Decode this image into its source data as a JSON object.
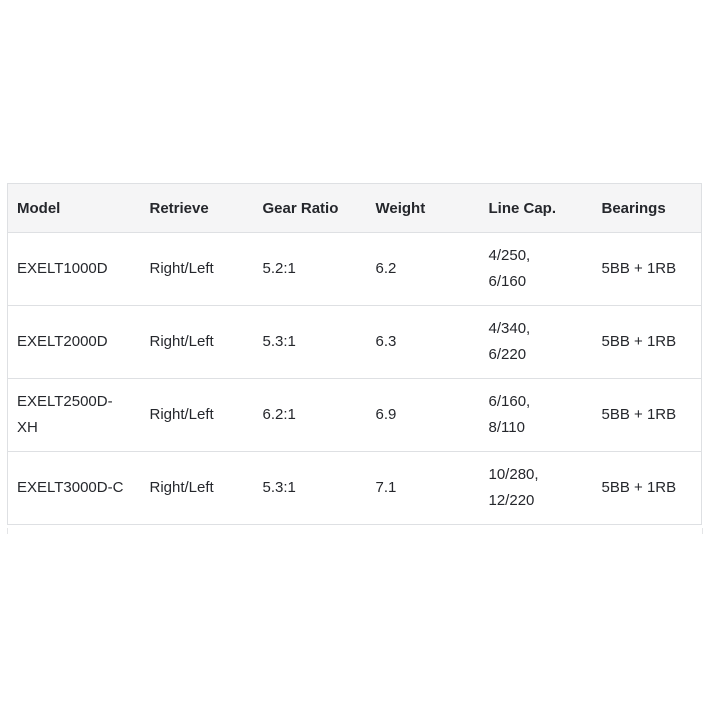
{
  "table": {
    "columns": [
      "Model",
      "Retrieve",
      "Gear Ratio",
      "Weight",
      "Line Cap.",
      "Bearings"
    ],
    "rows": [
      {
        "model": "EXELT1000D",
        "retrieve": "Right/Left",
        "gear_ratio": "5.2:1",
        "weight": "6.2",
        "line_cap": "4/250, 6/160",
        "bearings": "5BB + 1RB"
      },
      {
        "model": "EXELT2000D",
        "retrieve": "Right/Left",
        "gear_ratio": "5.3:1",
        "weight": "6.3",
        "line_cap": "4/340, 6/220",
        "bearings": "5BB + 1RB"
      },
      {
        "model": "EXELT2500D-XH",
        "retrieve": "Right/Left",
        "gear_ratio": "6.2:1",
        "weight": "6.9",
        "line_cap": "6/160, 8/110",
        "bearings": "5BB + 1RB"
      },
      {
        "model": "EXELT3000D-C",
        "retrieve": "Right/Left",
        "gear_ratio": "5.3:1",
        "weight": "7.1",
        "line_cap": "10/280, 12/220",
        "bearings": "5BB + 1RB"
      }
    ]
  },
  "colors": {
    "header_bg": "#f5f5f6",
    "border": "#dee0e3",
    "text": "#25272c"
  }
}
